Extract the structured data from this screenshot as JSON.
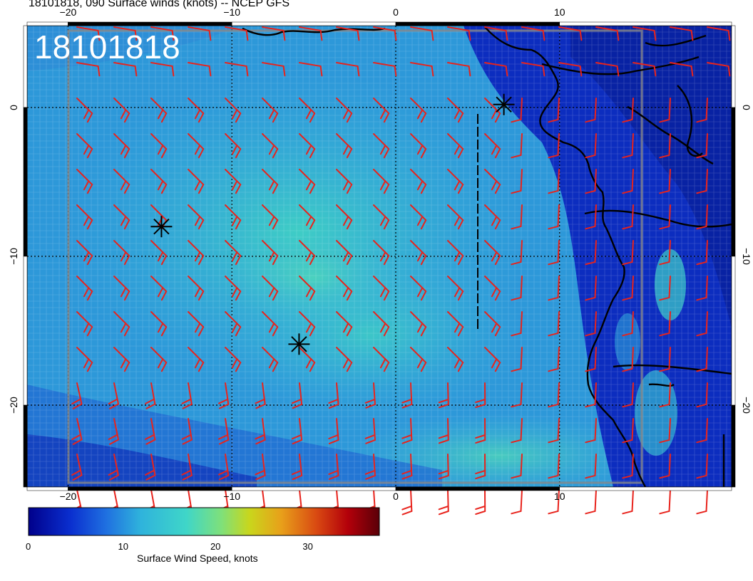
{
  "header": {
    "title": "18101818, 090 Surface winds (knots) -- NCEP GFS",
    "stamp": "18101818"
  },
  "map": {
    "lon_range": [
      -22.5,
      20.5
    ],
    "lat_range": [
      -25.5,
      5.5
    ],
    "lon_ticks": [
      -20,
      -10,
      0,
      10
    ],
    "lat_ticks": [
      0,
      -10,
      -20
    ],
    "lon_tick_labels": [
      "−20",
      "−10",
      "0",
      "10"
    ],
    "lat_tick_labels": [
      "0",
      "−10",
      "−20"
    ],
    "gridlines": "dotted every 10 degrees",
    "markers": [
      {
        "lon": -14.3,
        "lat": -8.0,
        "symbol": "asterisk"
      },
      {
        "lon": -5.9,
        "lat": -15.9,
        "symbol": "asterisk"
      },
      {
        "lon": 6.6,
        "lat": 0.2,
        "symbol": "asterisk"
      }
    ],
    "barb_color": "#e8231c",
    "coast_color": "#000000"
  },
  "colorbar": {
    "title": "Surface Wind Speed, knots",
    "min": 0,
    "max": 38,
    "ticks": [
      0,
      10,
      20,
      30
    ],
    "tick_labels": [
      "0",
      "10",
      "20",
      "30"
    ],
    "colors": [
      "#00008b",
      "#0a2fcf",
      "#1f6fe0",
      "#2fb3dc",
      "#3fd6c8",
      "#7fe07a",
      "#c9d61c",
      "#e8a01a",
      "#d94a12",
      "#b3000a",
      "#5a0008"
    ]
  }
}
